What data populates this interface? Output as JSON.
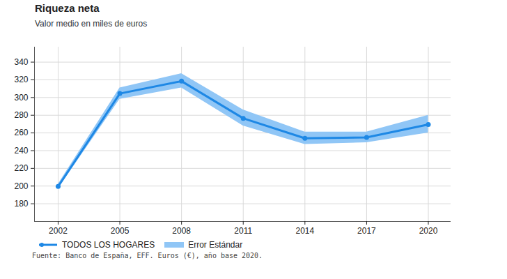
{
  "chart_data": {
    "type": "line",
    "title": "Riqueza neta",
    "subtitle": "Valor medio en miles de euros",
    "caption": "Fuente: Banco de España, EFF. Euros (€), año base 2020.",
    "x": [
      2002,
      2005,
      2008,
      2011,
      2014,
      2017,
      2020
    ],
    "series": [
      {
        "name": "TODOS LOS HOGARES",
        "color": "#1e88e5",
        "marker": "circle",
        "values": [
          199.5,
          304.5,
          318.5,
          276.5,
          254,
          255,
          269.5
        ],
        "error": {
          "name": "Error Estándar",
          "color": "#90c6f6",
          "low": [
            197,
            298,
            311,
            268,
            247,
            249,
            260
          ],
          "high": [
            202,
            311,
            327,
            286,
            261,
            261,
            280
          ]
        }
      }
    ],
    "xlim": [
      2000.85,
      2021.1
    ],
    "xticks": [
      2002,
      2005,
      2008,
      2011,
      2014,
      2017,
      2020
    ],
    "ylim": [
      160,
      357
    ],
    "yticks": [
      180,
      200,
      220,
      240,
      260,
      280,
      300,
      320,
      340
    ],
    "grid": true,
    "legend": "bottom-left"
  }
}
